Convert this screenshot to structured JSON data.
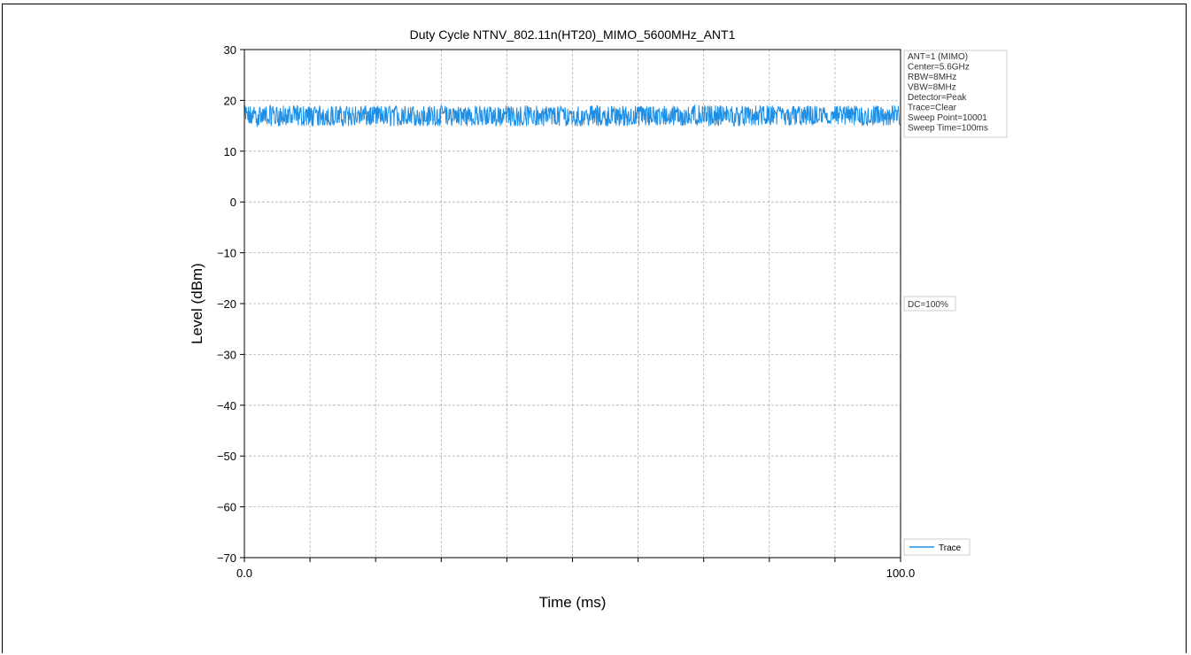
{
  "chart_data": {
    "type": "line",
    "title": "Duty Cycle NTNV_802.11n(HT20)_MIMO_5600MHz_ANT1",
    "xlabel": "Time (ms)",
    "ylabel": "Level (dBm)",
    "xlim": [
      0,
      100
    ],
    "ylim": [
      -70,
      30
    ],
    "x_ticks": [
      0,
      10,
      20,
      30,
      40,
      50,
      60,
      70,
      80,
      90,
      100
    ],
    "x_tick_labels": [
      "0.0",
      "",
      "",
      "",
      "",
      "",
      "",
      "",
      "",
      "",
      "100.0"
    ],
    "y_ticks": [
      30,
      20,
      10,
      0,
      -10,
      -20,
      -30,
      -40,
      -50,
      -60,
      -70
    ],
    "y_tick_labels": [
      "30",
      "20",
      "10",
      "0",
      "−10",
      "−20",
      "−30",
      "−40",
      "−50",
      "−60",
      "−70"
    ],
    "grid": true,
    "legend_position": "bottom-right",
    "series": [
      {
        "name": "Trace",
        "color": "#1f8fe6",
        "mean": 16.5,
        "min": 14.5,
        "max": 19.0
      }
    ],
    "info_box": [
      "ANT=1 (MIMO)",
      "Center=5.6GHz",
      "RBW=8MHz",
      "VBW=8MHz",
      "Detector=Peak",
      "Trace=Clear",
      "Sweep Point=10001",
      "Sweep Time=100ms"
    ],
    "annotation": "DC=100%"
  }
}
